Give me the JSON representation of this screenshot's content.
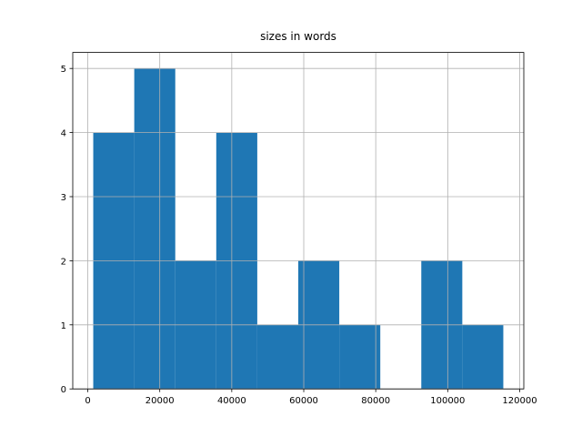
{
  "chart_data": {
    "type": "histogram",
    "title": "sizes in words",
    "bins": [
      1519,
      12911,
      24303,
      35696,
      47088,
      58480,
      69872,
      81264,
      92656,
      104048,
      115440
    ],
    "values": [
      4,
      5,
      2,
      4,
      1,
      2,
      1,
      0,
      2,
      1
    ],
    "color": "#1f77b4",
    "xlim": [
      -4177,
      121136
    ],
    "xticks": [
      0,
      20000,
      40000,
      60000,
      80000,
      100000,
      120000
    ],
    "ylim": [
      0,
      5.25
    ],
    "yticks": [
      0,
      1,
      2,
      3,
      4,
      5
    ],
    "grid": true
  }
}
